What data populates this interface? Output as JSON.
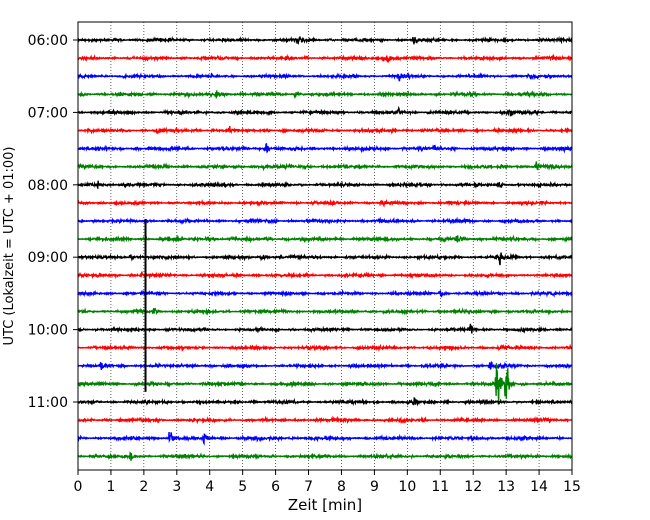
{
  "chart_data": {
    "type": "line",
    "title": "",
    "xlabel": "Zeit  [min]",
    "ylabel": "UTC (Lokalzeit = UTC + 01:00)",
    "xlim": [
      0,
      15
    ],
    "x_ticks": [
      "0",
      "1",
      "2",
      "3",
      "4",
      "5",
      "6",
      "7",
      "8",
      "9",
      "10",
      "11",
      "12",
      "13",
      "14",
      "15"
    ],
    "y_ticks": [
      "06:00",
      "07:00",
      "08:00",
      "09:00",
      "10:00",
      "11:00"
    ],
    "grid": "vertical dotted",
    "colors": [
      "#000000",
      "#ff0000",
      "#0000ff",
      "#008000"
    ],
    "trace_interval_min": 15,
    "first_trace_time": "06:00",
    "series": [
      {
        "time": "06:00",
        "color": "#000000",
        "noise": 1.5,
        "events": [
          [
            6.7,
            7
          ],
          [
            10.2,
            9
          ]
        ]
      },
      {
        "time": "06:15",
        "color": "#ff0000",
        "noise": 1.6,
        "events": [
          [
            9.25,
            7
          ],
          [
            9.4,
            6
          ]
        ]
      },
      {
        "time": "06:30",
        "color": "#0000ff",
        "noise": 1.5,
        "events": [
          [
            9.75,
            7
          ]
        ]
      },
      {
        "time": "06:45",
        "color": "#008000",
        "noise": 1.7,
        "events": [
          [
            4.2,
            7
          ],
          [
            6.6,
            6
          ]
        ]
      },
      {
        "time": "07:00",
        "color": "#000000",
        "noise": 1.6,
        "events": [
          [
            9.7,
            8
          ],
          [
            13.1,
            8
          ]
        ]
      },
      {
        "time": "07:15",
        "color": "#ff0000",
        "noise": 1.6,
        "events": [
          [
            2.4,
            5
          ],
          [
            4.6,
            4
          ]
        ]
      },
      {
        "time": "07:30",
        "color": "#0000ff",
        "noise": 1.8,
        "events": [
          [
            5.7,
            9
          ],
          [
            10.8,
            6
          ]
        ]
      },
      {
        "time": "07:45",
        "color": "#008000",
        "noise": 1.7,
        "events": [
          [
            5.6,
            5
          ],
          [
            13.9,
            6
          ]
        ]
      },
      {
        "time": "08:00",
        "color": "#000000",
        "noise": 1.6,
        "events": [
          [
            0.6,
            6
          ],
          [
            12.8,
            6
          ]
        ]
      },
      {
        "time": "08:15",
        "color": "#ff0000",
        "noise": 1.5,
        "events": [
          [
            9.2,
            5
          ],
          [
            11.2,
            5
          ]
        ]
      },
      {
        "time": "08:30",
        "color": "#0000ff",
        "noise": 1.6,
        "events": [
          [
            9.1,
            5
          ]
        ]
      },
      {
        "time": "08:45",
        "color": "#008000",
        "noise": 1.7,
        "events": [
          [
            3.9,
            5
          ],
          [
            11.5,
            8
          ]
        ]
      },
      {
        "time": "09:00",
        "color": "#000000",
        "noise": 1.6,
        "events": [
          [
            1.6,
            5
          ],
          [
            5.6,
            5
          ],
          [
            12.8,
            7
          ]
        ]
      },
      {
        "time": "09:15",
        "color": "#ff0000",
        "noise": 1.6,
        "events": [
          [
            1.9,
            4
          ]
        ]
      },
      {
        "time": "09:30",
        "color": "#0000ff",
        "noise": 1.5,
        "events": [
          [
            11.0,
            6
          ]
        ]
      },
      {
        "time": "09:45",
        "color": "#008000",
        "noise": 1.6,
        "events": [
          [
            2.3,
            5
          ]
        ]
      },
      {
        "time": "10:00",
        "color": "#000000",
        "noise": 1.5,
        "events": [
          [
            11.9,
            6
          ]
        ]
      },
      {
        "time": "10:15",
        "color": "#ff0000",
        "noise": 1.6,
        "events": [
          [
            8.5,
            4
          ]
        ]
      },
      {
        "time": "10:30",
        "color": "#0000ff",
        "noise": 1.6,
        "events": [
          [
            0.7,
            5
          ],
          [
            12.5,
            5
          ]
        ]
      },
      {
        "time": "10:45",
        "color": "#008000",
        "noise": 1.7,
        "events": [
          [
            12.7,
            48
          ],
          [
            13.0,
            28
          ]
        ]
      },
      {
        "time": "11:00",
        "color": "#000000",
        "noise": 1.6,
        "events": [
          [
            10.2,
            6
          ]
        ]
      },
      {
        "time": "11:15",
        "color": "#ff0000",
        "noise": 1.6,
        "events": [
          [
            9.8,
            5
          ]
        ]
      },
      {
        "time": "11:30",
        "color": "#0000ff",
        "noise": 1.8,
        "events": [
          [
            2.8,
            12
          ],
          [
            3.8,
            12
          ]
        ]
      },
      {
        "time": "11:45",
        "color": "#008000",
        "noise": 1.6,
        "events": [
          [
            1.6,
            5
          ]
        ]
      }
    ],
    "spike": {
      "x_min": 2.05,
      "from": "08:30",
      "to": "10:45",
      "color": "#000000"
    }
  }
}
